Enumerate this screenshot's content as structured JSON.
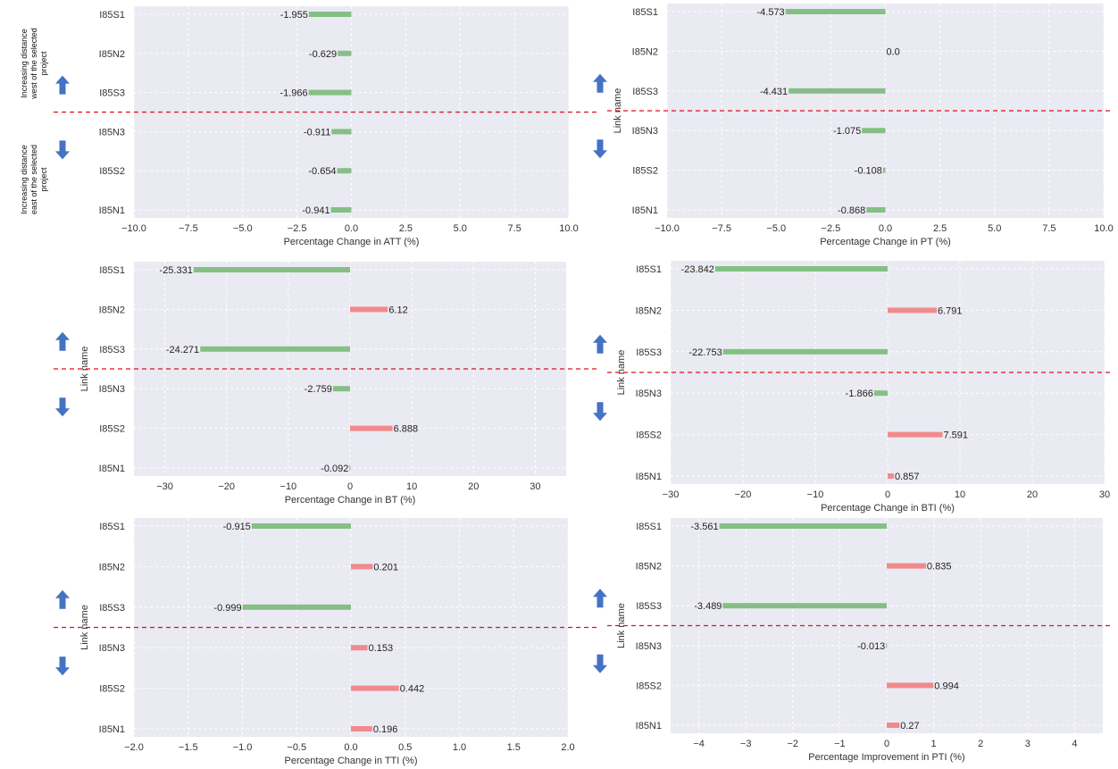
{
  "colors": {
    "decrease": "#85bf85",
    "increase": "#f08a8c",
    "panel_bg": "#eaeaf2",
    "grid": "#ffffff",
    "divider": "#e0121b",
    "arrow": "#4472c4"
  },
  "icons": {
    "up": "arrow-up-icon",
    "down": "arrow-down-icon"
  },
  "annotations": {
    "west_lines": [
      "Increasing distance",
      "west of the selected",
      "project"
    ],
    "east_lines": [
      "Increasing distance",
      "east of the selected",
      "project"
    ]
  },
  "chart_data": [
    {
      "type": "bar",
      "orientation": "horizontal",
      "categories": [
        "I85S1",
        "I85N2",
        "I85S3",
        "I85N3",
        "I85S2",
        "I85N1"
      ],
      "values": [
        -1.955,
        -0.629,
        -1.966,
        -0.911,
        -0.654,
        -0.941
      ],
      "value_labels": [
        "-1.955",
        "-0.629",
        "-1.966",
        "-0.911",
        "-0.654",
        "-0.941"
      ],
      "xlabel": "Percentage Change in ATT (%)",
      "ylabel": "",
      "xlim": [
        -10,
        10
      ],
      "xticks": [
        -10,
        -7.5,
        -5,
        -2.5,
        0,
        2.5,
        5,
        7.5,
        10
      ],
      "xtick_labels": [
        "−10.0",
        "−7.5",
        "−5.0",
        "−2.5",
        "0.0",
        "2.5",
        "5.0",
        "7.5",
        "10.0"
      ],
      "grid": true
    },
    {
      "type": "bar",
      "orientation": "horizontal",
      "categories": [
        "I85S1",
        "I85N2",
        "I85S3",
        "I85N3",
        "I85S2",
        "I85N1"
      ],
      "values": [
        -4.573,
        0.0,
        -4.431,
        -1.075,
        -0.108,
        -0.868
      ],
      "value_labels": [
        "-4.573",
        "0.0",
        "-4.431",
        "-1.075",
        "-0.108",
        "-0.868"
      ],
      "xlabel": "Percentage Change in PT (%)",
      "ylabel": "Link name",
      "xlim": [
        -10,
        10
      ],
      "xticks": [
        -10,
        -7.5,
        -5,
        -2.5,
        0,
        2.5,
        5,
        7.5,
        10
      ],
      "xtick_labels": [
        "−10.0",
        "−7.5",
        "−5.0",
        "−2.5",
        "0.0",
        "2.5",
        "5.0",
        "7.5",
        "10.0"
      ],
      "grid": true
    },
    {
      "type": "bar",
      "orientation": "horizontal",
      "categories": [
        "I85S1",
        "I85N2",
        "I85S3",
        "I85N3",
        "I85S2",
        "I85N1"
      ],
      "values": [
        -25.331,
        6.12,
        -24.271,
        -2.759,
        6.888,
        -0.092
      ],
      "value_labels": [
        "-25.331",
        "6.12",
        "-24.271",
        "-2.759",
        "6.888",
        "-0.092"
      ],
      "xlabel": "Percentage Change in BT (%)",
      "ylabel": "Link name",
      "xlim": [
        -35,
        35
      ],
      "xticks": [
        -30,
        -20,
        -10,
        0,
        10,
        20,
        30
      ],
      "xtick_labels": [
        "−30",
        "−20",
        "−10",
        "0",
        "10",
        "20",
        "30"
      ],
      "grid": true
    },
    {
      "type": "bar",
      "orientation": "horizontal",
      "categories": [
        "I85S1",
        "I85N2",
        "I85S3",
        "I85N3",
        "I85S2",
        "I85N1"
      ],
      "values": [
        -23.842,
        6.791,
        -22.753,
        -1.866,
        7.591,
        0.857
      ],
      "value_labels": [
        "-23.842",
        "6.791",
        "-22.753",
        "-1.866",
        "7.591",
        "0.857"
      ],
      "xlabel": "Percentage Change in BTI (%)",
      "ylabel": "Link name",
      "xlim": [
        -30,
        30
      ],
      "xticks": [
        -30,
        -20,
        -10,
        0,
        10,
        20,
        30
      ],
      "xtick_labels": [
        "−30",
        "−20",
        "−10",
        "0",
        "10",
        "20",
        "30"
      ],
      "grid": true
    },
    {
      "type": "bar",
      "orientation": "horizontal",
      "categories": [
        "I85S1",
        "I85N2",
        "I85S3",
        "I85N3",
        "I85S2",
        "I85N1"
      ],
      "values": [
        -0.915,
        0.201,
        -0.999,
        0.153,
        0.442,
        0.196
      ],
      "value_labels": [
        "-0.915",
        "0.201",
        "-0.999",
        "0.153",
        "0.442",
        "0.196"
      ],
      "xlabel": "Percentage Change in TTI (%)",
      "ylabel": "Link name",
      "xlim": [
        -2,
        2
      ],
      "xticks": [
        -2,
        -1.5,
        -1,
        -0.5,
        0,
        0.5,
        1,
        1.5,
        2
      ],
      "xtick_labels": [
        "−2.0",
        "−1.5",
        "−1.0",
        "−0.5",
        "0.0",
        "0.5",
        "1.0",
        "1.5",
        "2.0"
      ],
      "grid": true
    },
    {
      "type": "bar",
      "orientation": "horizontal",
      "categories": [
        "I85S1",
        "I85N2",
        "I85S3",
        "I85N3",
        "I85S2",
        "I85N1"
      ],
      "values": [
        -3.561,
        0.835,
        -3.489,
        -0.013,
        0.994,
        0.27
      ],
      "value_labels": [
        "-3.561",
        "0.835",
        "-3.489",
        "-0.013",
        "0.994",
        "0.27"
      ],
      "xlabel": "Percentage Improvement in PTI (%)",
      "ylabel": "Link name",
      "xlim": [
        -4.6,
        4.6
      ],
      "xticks": [
        -4,
        -3,
        -2,
        -1,
        0,
        1,
        2,
        3,
        4
      ],
      "xtick_labels": [
        "−4",
        "−3",
        "−2",
        "−1",
        "0",
        "1",
        "2",
        "3",
        "4"
      ],
      "grid": true
    }
  ]
}
